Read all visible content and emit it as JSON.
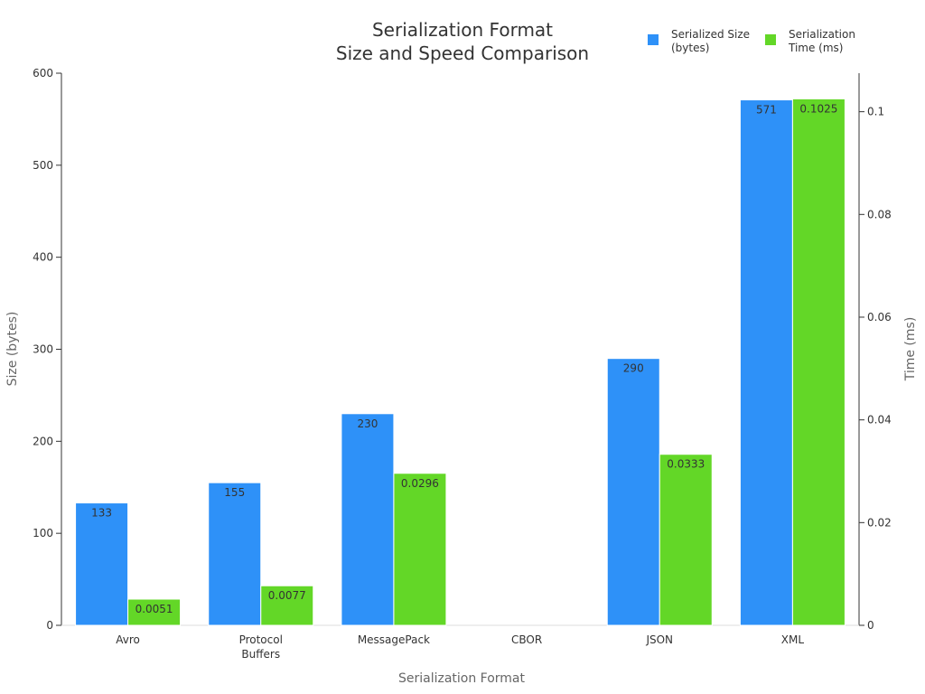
{
  "chart_data": {
    "type": "bar",
    "title": [
      "Serialization Format",
      "Size and Speed Comparison"
    ],
    "xlabel": "Serialization Format",
    "ylabel_left": "Size (bytes)",
    "ylabel_right": "Time (ms)",
    "categories": [
      [
        "Avro"
      ],
      [
        "Protocol",
        "Buffers"
      ],
      [
        "MessagePack"
      ],
      [
        "CBOR"
      ],
      [
        "JSON"
      ],
      [
        "XML"
      ]
    ],
    "series": [
      {
        "name": [
          "Serialized Size",
          "(bytes)"
        ],
        "axis": "left",
        "color": "#2e91f8",
        "values": [
          133,
          155,
          230,
          null,
          290,
          571
        ],
        "labels": [
          "133",
          "155",
          "230",
          "",
          "290",
          "571"
        ]
      },
      {
        "name": [
          "Serialization",
          "Time (ms)"
        ],
        "axis": "right",
        "color": "#63d727",
        "values": [
          0.0051,
          0.0077,
          0.0296,
          null,
          0.0333,
          0.1025
        ],
        "labels": [
          "0.0051",
          "0.0077",
          "0.0296",
          "",
          "0.0333",
          "0.1025"
        ]
      }
    ],
    "left_axis": {
      "min": 0,
      "max": 600,
      "ticks": [
        "0",
        "100",
        "200",
        "300",
        "400",
        "500",
        "600"
      ]
    },
    "right_axis": {
      "min": 0,
      "max": 0.1075,
      "ticks": [
        "0",
        "0.02",
        "0.04",
        "0.06",
        "0.08",
        "0.1"
      ]
    },
    "legend_position": "top-right",
    "grid": false
  }
}
